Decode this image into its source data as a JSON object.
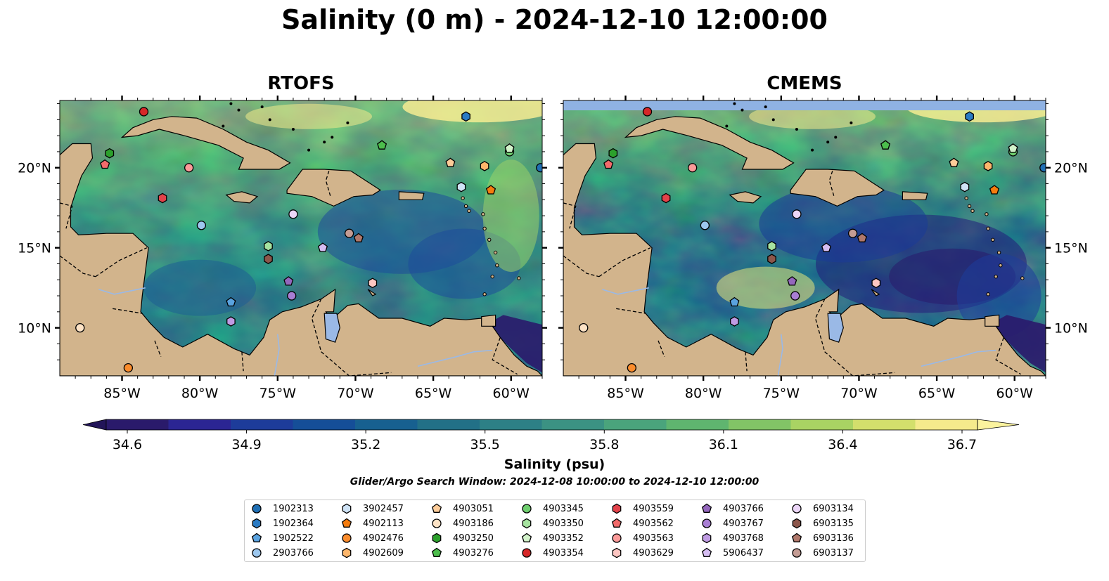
{
  "title": "Salinity (0 m) - 2024-12-10 12:00:00",
  "panels": [
    {
      "title": "RTOFS"
    },
    {
      "title": "CMEMS"
    }
  ],
  "axes": {
    "lon_ticks": [
      "85°W",
      "80°W",
      "75°W",
      "70°W",
      "65°W",
      "60°W"
    ],
    "lat_ticks": [
      "20°N",
      "15°N",
      "10°N"
    ],
    "lon_range": [
      -89,
      -58
    ],
    "lat_range": [
      7.0,
      24.2
    ]
  },
  "colorbar": {
    "label": "Salinity (psu)",
    "ticks": [
      "34.6",
      "34.9",
      "35.2",
      "35.5",
      "35.8",
      "36.1",
      "36.4",
      "36.7"
    ],
    "range": [
      34.6,
      36.7
    ],
    "colors": [
      "#2a1a6b",
      "#2b2593",
      "#1d3c9a",
      "#154e98",
      "#176090",
      "#227087",
      "#2d8086",
      "#3b9283",
      "#4aa47c",
      "#5fb56f",
      "#82c466",
      "#a9d363",
      "#d3df6c",
      "#f5ea8c"
    ]
  },
  "search_window": "Glider/Argo Search Window: 2024-12-08 10:00:00 to 2024-12-10 12:00:00",
  "colors": {
    "land": "#d2b48c",
    "lake": "#9ab9e6",
    "no_data": "#8fb2e3"
  },
  "legend": [
    {
      "id": "1902313",
      "marker": "circle",
      "color": "#1f6fb4"
    },
    {
      "id": "1902364",
      "marker": "hexagon",
      "color": "#2a7bc4"
    },
    {
      "id": "1902522",
      "marker": "pentagon",
      "color": "#5aa3e0"
    },
    {
      "id": "2903766",
      "marker": "circle",
      "color": "#9cc7ee"
    },
    {
      "id": "3902457",
      "marker": "hexagon",
      "color": "#cfe3f6"
    },
    {
      "id": "4902113",
      "marker": "pentagon",
      "color": "#f57c0e"
    },
    {
      "id": "4902476",
      "marker": "circle",
      "color": "#fb8c2c"
    },
    {
      "id": "4902609",
      "marker": "hexagon",
      "color": "#fdb66b"
    },
    {
      "id": "4903051",
      "marker": "pentagon",
      "color": "#fdcc99"
    },
    {
      "id": "4903186",
      "marker": "circle",
      "color": "#fde3c6"
    },
    {
      "id": "4903250",
      "marker": "hexagon",
      "color": "#2ca02c"
    },
    {
      "id": "4903276",
      "marker": "pentagon",
      "color": "#4cbd4c"
    },
    {
      "id": "4903345",
      "marker": "circle",
      "color": "#6fcf6f"
    },
    {
      "id": "4903350",
      "marker": "hexagon",
      "color": "#a6e3a0"
    },
    {
      "id": "4903352",
      "marker": "pentagon",
      "color": "#d3f3cb"
    },
    {
      "id": "4903354",
      "marker": "circle",
      "color": "#d62728"
    },
    {
      "id": "4903559",
      "marker": "hexagon",
      "color": "#e2424a"
    },
    {
      "id": "4903562",
      "marker": "pentagon",
      "color": "#f26b6b"
    },
    {
      "id": "4903563",
      "marker": "circle",
      "color": "#fb9a99"
    },
    {
      "id": "4903629",
      "marker": "hexagon",
      "color": "#fdc6c2"
    },
    {
      "id": "4903766",
      "marker": "pentagon",
      "color": "#9467bd"
    },
    {
      "id": "4903767",
      "marker": "circle",
      "color": "#a87ed3"
    },
    {
      "id": "4903768",
      "marker": "hexagon",
      "color": "#bf9be3"
    },
    {
      "id": "5906437",
      "marker": "pentagon",
      "color": "#d5bdf2"
    },
    {
      "id": "6903134",
      "marker": "circle",
      "color": "#ecd6f8"
    },
    {
      "id": "6903135",
      "marker": "hexagon",
      "color": "#8c564b"
    },
    {
      "id": "6903136",
      "marker": "pentagon",
      "color": "#b0786b"
    },
    {
      "id": "6903137",
      "marker": "circle",
      "color": "#c49c94"
    }
  ],
  "floats": [
    {
      "id": "4903354",
      "lon": -83.6,
      "lat": 23.5
    },
    {
      "id": "1902364",
      "lon": -62.9,
      "lat": 23.2
    },
    {
      "id": "4903250",
      "lon": -85.8,
      "lat": 20.9
    },
    {
      "id": "4903562",
      "lon": -86.1,
      "lat": 20.2
    },
    {
      "id": "4903276",
      "lon": -68.3,
      "lat": 21.4
    },
    {
      "id": "4903051",
      "lon": -63.9,
      "lat": 20.3
    },
    {
      "id": "4902609",
      "lon": -61.7,
      "lat": 20.1
    },
    {
      "id": "4903345",
      "lon": -60.1,
      "lat": 21.0
    },
    {
      "id": "4903352",
      "lon": -60.1,
      "lat": 21.2
    },
    {
      "id": "1902313",
      "lon": -58.1,
      "lat": 20.0
    },
    {
      "id": "4903563",
      "lon": -80.7,
      "lat": 20.0
    },
    {
      "id": "3902457",
      "lon": -63.2,
      "lat": 18.8
    },
    {
      "id": "4902113",
      "lon": -61.3,
      "lat": 18.6
    },
    {
      "id": "4903559",
      "lon": -82.4,
      "lat": 18.1
    },
    {
      "id": "6903134",
      "lon": -74.0,
      "lat": 17.1
    },
    {
      "id": "2903766",
      "lon": -79.9,
      "lat": 16.4
    },
    {
      "id": "6903137",
      "lon": -70.4,
      "lat": 15.9
    },
    {
      "id": "6903136",
      "lon": -69.8,
      "lat": 15.6
    },
    {
      "id": "4903350",
      "lon": -75.6,
      "lat": 15.1
    },
    {
      "id": "5906437",
      "lon": -72.1,
      "lat": 15.0
    },
    {
      "id": "6903135",
      "lon": -75.6,
      "lat": 14.3
    },
    {
      "id": "4903766",
      "lon": -74.3,
      "lat": 12.9
    },
    {
      "id": "4903629",
      "lon": -68.9,
      "lat": 12.8
    },
    {
      "id": "4903767",
      "lon": -74.1,
      "lat": 12.0
    },
    {
      "id": "1902522",
      "lon": -78.0,
      "lat": 11.6
    },
    {
      "id": "4903768",
      "lon": -78.0,
      "lat": 10.4
    },
    {
      "id": "4903186",
      "lon": -87.7,
      "lat": 10.0
    },
    {
      "id": "4902476",
      "lon": -84.6,
      "lat": 7.5
    }
  ]
}
